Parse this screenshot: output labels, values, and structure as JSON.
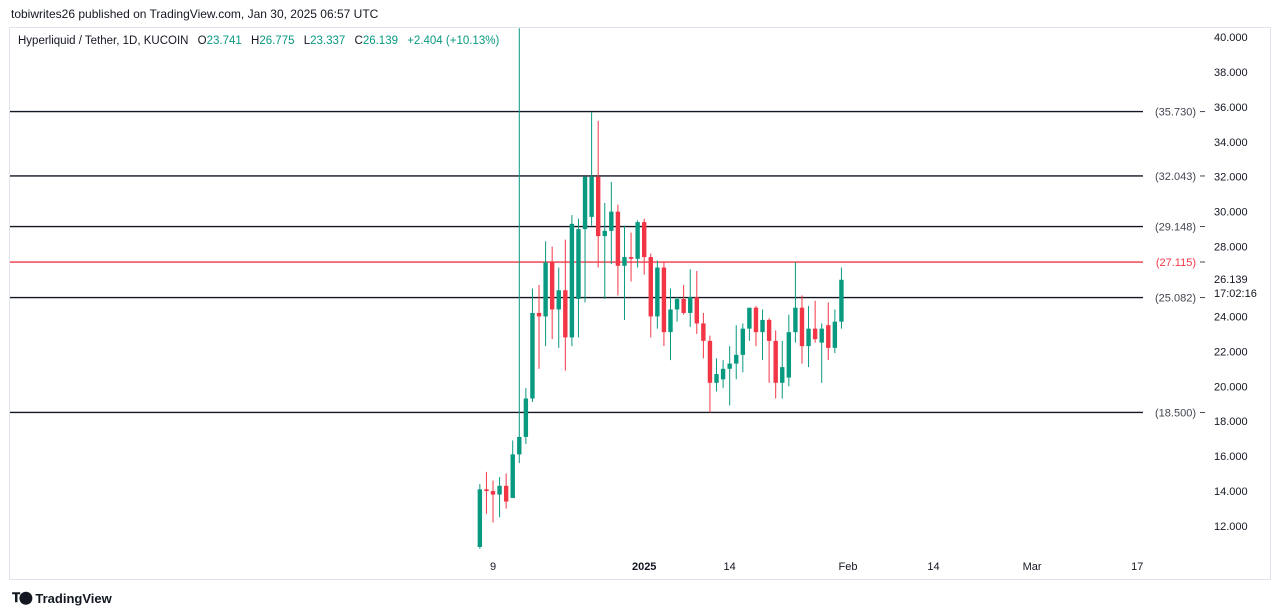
{
  "publisher": "tobiwrites26 published on TradingView.com, Jan 30, 2025 06:57 UTC",
  "legend": {
    "symbol": "Hyperliquid / Tether, 1D, KUCOIN",
    "o_label": "O",
    "o_value": "23.741",
    "h_label": "H",
    "h_value": "26.775",
    "l_label": "L",
    "l_value": "23.337",
    "c_label": "C",
    "c_value": "26.139",
    "change": "+2.404 (+10.13%)"
  },
  "footer": {
    "logo": "TradingView"
  },
  "colors": {
    "up": "#089981",
    "down": "#f23645",
    "level": "#131722",
    "level_highlight": "#f23645",
    "axis_text": "#131722"
  },
  "chart_data": {
    "type": "candlestick",
    "ylim": [
      10.4,
      41.2
    ],
    "y_ticks": [
      {
        "value": 12,
        "label": "12.000"
      },
      {
        "value": 14,
        "label": "14.000"
      },
      {
        "value": 16,
        "label": "16.000"
      },
      {
        "value": 18,
        "label": "18.000"
      },
      {
        "value": 20,
        "label": "20.000"
      },
      {
        "value": 22,
        "label": "22.000"
      },
      {
        "value": 24,
        "label": "24.000"
      },
      {
        "value": 28,
        "label": "28.000"
      },
      {
        "value": 30,
        "label": "30.000"
      },
      {
        "value": 32,
        "label": "32.000"
      },
      {
        "value": 34,
        "label": "34.000"
      },
      {
        "value": 36,
        "label": "36.000"
      },
      {
        "value": 38,
        "label": "38.000"
      },
      {
        "value": 40,
        "label": "40.000"
      }
    ],
    "x_ticks": [
      {
        "day": 9,
        "label": "9",
        "bold": false
      },
      {
        "day": 32,
        "label": "2025",
        "bold": true
      },
      {
        "day": 45,
        "label": "14",
        "bold": false
      },
      {
        "day": 63,
        "label": "Feb",
        "bold": false
      },
      {
        "day": 76,
        "label": "14",
        "bold": false
      },
      {
        "day": 91,
        "label": "Mar",
        "bold": false
      },
      {
        "day": 107,
        "label": "17",
        "bold": false
      }
    ],
    "levels": [
      {
        "value": 35.73,
        "label": "(35.730)",
        "highlight": false
      },
      {
        "value": 32.043,
        "label": "(32.043)",
        "highlight": false
      },
      {
        "value": 29.148,
        "label": "(29.148)",
        "highlight": false
      },
      {
        "value": 27.115,
        "label": "(27.115)",
        "highlight": true
      },
      {
        "value": 25.082,
        "label": "(25.082)",
        "highlight": false
      },
      {
        "value": 18.5,
        "label": "(18.500)",
        "highlight": false
      }
    ],
    "last_price": {
      "value": 26.139,
      "label": "26.139",
      "countdown": "17:02:16"
    },
    "candles": [
      {
        "day": 7,
        "o": 10.8,
        "h": 14.4,
        "l": 10.7,
        "c": 14.1
      },
      {
        "day": 8,
        "o": 14.1,
        "h": 15.1,
        "l": 12.7,
        "c": 14.0
      },
      {
        "day": 9,
        "o": 14.0,
        "h": 14.6,
        "l": 12.2,
        "c": 13.8
      },
      {
        "day": 10,
        "o": 13.8,
        "h": 14.8,
        "l": 12.5,
        "c": 14.3
      },
      {
        "day": 11,
        "o": 14.3,
        "h": 15.0,
        "l": 13.0,
        "c": 13.4
      },
      {
        "day": 12,
        "o": 13.6,
        "h": 16.9,
        "l": 13.6,
        "c": 16.1
      },
      {
        "day": 13,
        "o": 16.1,
        "h": 40.5,
        "l": 15.6,
        "c": 17.1
      },
      {
        "day": 14,
        "o": 17.1,
        "h": 19.9,
        "l": 16.7,
        "c": 19.3
      },
      {
        "day": 15,
        "o": 19.3,
        "h": 25.6,
        "l": 19.1,
        "c": 24.2
      },
      {
        "day": 16,
        "o": 24.2,
        "h": 25.8,
        "l": 21.0,
        "c": 24.0
      },
      {
        "day": 17,
        "o": 24.0,
        "h": 28.3,
        "l": 22.3,
        "c": 27.1
      },
      {
        "day": 18,
        "o": 27.1,
        "h": 28.0,
        "l": 22.7,
        "c": 24.4
      },
      {
        "day": 19,
        "o": 24.4,
        "h": 26.8,
        "l": 22.2,
        "c": 25.5
      },
      {
        "day": 20,
        "o": 25.5,
        "h": 28.4,
        "l": 20.9,
        "c": 22.8
      },
      {
        "day": 21,
        "o": 22.8,
        "h": 29.8,
        "l": 22.3,
        "c": 29.3
      },
      {
        "day": 22,
        "o": 25.0,
        "h": 29.6,
        "l": 22.8,
        "c": 29.0
      },
      {
        "day": 23,
        "o": 29.0,
        "h": 32.0,
        "l": 24.8,
        "c": 32.0
      },
      {
        "day": 24,
        "o": 29.7,
        "h": 35.7,
        "l": 29.2,
        "c": 32.0
      },
      {
        "day": 25,
        "o": 32.0,
        "h": 35.2,
        "l": 26.8,
        "c": 28.6
      },
      {
        "day": 26,
        "o": 28.6,
        "h": 30.5,
        "l": 25.0,
        "c": 28.9
      },
      {
        "day": 27,
        "o": 28.9,
        "h": 31.7,
        "l": 27.0,
        "c": 30.0
      },
      {
        "day": 28,
        "o": 30.0,
        "h": 30.4,
        "l": 25.2,
        "c": 26.9
      },
      {
        "day": 29,
        "o": 26.9,
        "h": 29.2,
        "l": 23.8,
        "c": 27.4
      },
      {
        "day": 30,
        "o": 27.4,
        "h": 28.8,
        "l": 26.0,
        "c": 27.3
      },
      {
        "day": 31,
        "o": 27.3,
        "h": 29.5,
        "l": 26.8,
        "c": 29.4
      },
      {
        "day": 32,
        "o": 29.4,
        "h": 29.6,
        "l": 26.4,
        "c": 27.4
      },
      {
        "day": 33,
        "o": 27.4,
        "h": 27.6,
        "l": 22.8,
        "c": 24.0
      },
      {
        "day": 34,
        "o": 24.0,
        "h": 27.2,
        "l": 23.3,
        "c": 26.8
      },
      {
        "day": 35,
        "o": 26.8,
        "h": 27.1,
        "l": 22.3,
        "c": 23.1
      },
      {
        "day": 36,
        "o": 23.1,
        "h": 25.6,
        "l": 21.5,
        "c": 24.4
      },
      {
        "day": 37,
        "o": 24.4,
        "h": 25.1,
        "l": 23.7,
        "c": 25.0
      },
      {
        "day": 38,
        "o": 25.0,
        "h": 25.8,
        "l": 24.1,
        "c": 24.2
      },
      {
        "day": 39,
        "o": 24.2,
        "h": 26.7,
        "l": 23.4,
        "c": 25.1
      },
      {
        "day": 40,
        "o": 25.1,
        "h": 26.6,
        "l": 23.0,
        "c": 23.6
      },
      {
        "day": 41,
        "o": 23.6,
        "h": 24.2,
        "l": 21.6,
        "c": 22.6
      },
      {
        "day": 42,
        "o": 22.6,
        "h": 22.9,
        "l": 18.5,
        "c": 20.2
      },
      {
        "day": 43,
        "o": 20.2,
        "h": 21.6,
        "l": 19.7,
        "c": 20.7
      },
      {
        "day": 44,
        "o": 20.4,
        "h": 21.5,
        "l": 19.9,
        "c": 21.0
      },
      {
        "day": 45,
        "o": 21.0,
        "h": 22.3,
        "l": 18.9,
        "c": 21.3
      },
      {
        "day": 46,
        "o": 21.3,
        "h": 23.5,
        "l": 20.4,
        "c": 21.8
      },
      {
        "day": 47,
        "o": 21.8,
        "h": 23.6,
        "l": 20.8,
        "c": 23.3
      },
      {
        "day": 48,
        "o": 23.3,
        "h": 24.2,
        "l": 22.6,
        "c": 24.5
      },
      {
        "day": 49,
        "o": 24.5,
        "h": 24.6,
        "l": 22.3,
        "c": 23.1
      },
      {
        "day": 50,
        "o": 23.1,
        "h": 24.4,
        "l": 21.5,
        "c": 23.8
      },
      {
        "day": 51,
        "o": 23.8,
        "h": 23.9,
        "l": 20.2,
        "c": 22.6
      },
      {
        "day": 52,
        "o": 22.6,
        "h": 23.2,
        "l": 19.3,
        "c": 20.2
      },
      {
        "day": 53,
        "o": 20.2,
        "h": 22.6,
        "l": 19.3,
        "c": 21.1
      },
      {
        "day": 54,
        "o": 20.5,
        "h": 24.1,
        "l": 20.0,
        "c": 23.1
      },
      {
        "day": 55,
        "o": 23.1,
        "h": 27.1,
        "l": 22.5,
        "c": 24.5
      },
      {
        "day": 56,
        "o": 24.5,
        "h": 25.2,
        "l": 21.3,
        "c": 22.3
      },
      {
        "day": 57,
        "o": 22.3,
        "h": 24.6,
        "l": 21.1,
        "c": 23.3
      },
      {
        "day": 58,
        "o": 23.3,
        "h": 24.9,
        "l": 22.5,
        "c": 22.7
      },
      {
        "day": 59,
        "o": 22.5,
        "h": 23.6,
        "l": 20.2,
        "c": 23.3
      },
      {
        "day": 60,
        "o": 23.5,
        "h": 24.8,
        "l": 21.5,
        "c": 22.2
      },
      {
        "day": 61,
        "o": 22.2,
        "h": 24.4,
        "l": 21.9,
        "c": 23.7
      },
      {
        "day": 62,
        "o": 23.7,
        "h": 26.8,
        "l": 23.3,
        "c": 26.1
      }
    ]
  }
}
